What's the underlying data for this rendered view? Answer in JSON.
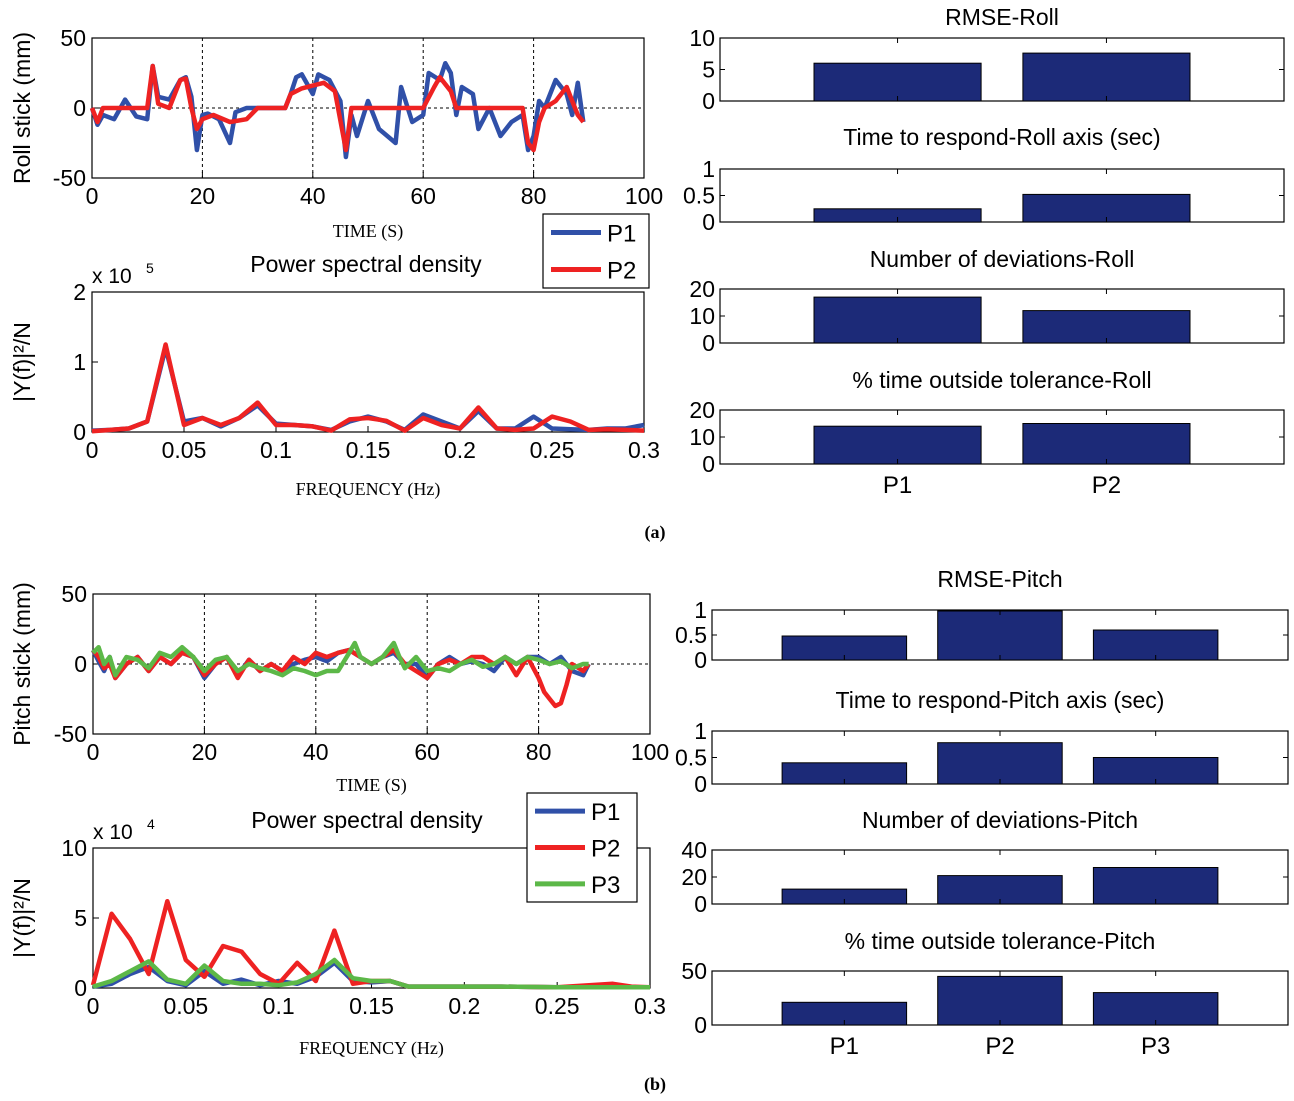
{
  "figure": {
    "caption_a": "(a)",
    "caption_b": "(b)",
    "colors": {
      "P1": "#3050a8",
      "P2": "#ee2222",
      "P3": "#5cb848",
      "bar": "#1c2a78"
    }
  },
  "chart_data": [
    {
      "id": "a-roll-time",
      "type": "line",
      "xlabel": "TIME (S)",
      "ylabel": "Roll stick (mm)",
      "xlim": [
        0,
        100
      ],
      "ylim": [
        -50,
        50
      ],
      "xticks": [
        0,
        20,
        40,
        60,
        80,
        100
      ],
      "yticks": [
        -50,
        0,
        50
      ],
      "grid": true,
      "legend_placement": "bottom-right-outside",
      "series": [
        {
          "name": "P1",
          "color": "#3050a8",
          "x": [
            0,
            1,
            2,
            4,
            6,
            8,
            10,
            11,
            12,
            14,
            16,
            17,
            18,
            19,
            20,
            21,
            23,
            25,
            26,
            28,
            30,
            32,
            35,
            36,
            37,
            38,
            40,
            41,
            43,
            45,
            46,
            47,
            48,
            50,
            52,
            55,
            56,
            58,
            60,
            61,
            63,
            64,
            65,
            66,
            67,
            69,
            70,
            72,
            74,
            76,
            78,
            79,
            80,
            81,
            82,
            84,
            86,
            87,
            88,
            89
          ],
          "y": [
            0,
            -12,
            -5,
            -8,
            6,
            -6,
            -8,
            30,
            8,
            6,
            20,
            22,
            8,
            -30,
            -5,
            -4,
            -8,
            -25,
            -3,
            0,
            0,
            0,
            0,
            10,
            22,
            24,
            10,
            24,
            20,
            5,
            -35,
            -5,
            -20,
            5,
            -15,
            -25,
            15,
            -10,
            -5,
            25,
            20,
            32,
            25,
            -5,
            15,
            10,
            -15,
            0,
            -20,
            -10,
            -5,
            -30,
            -20,
            5,
            0,
            20,
            10,
            -5,
            18,
            -10
          ]
        },
        {
          "name": "P2",
          "color": "#ee2222",
          "x": [
            0,
            1,
            2,
            4,
            6,
            8,
            10,
            11,
            12,
            14,
            16,
            17,
            18,
            19,
            20,
            22,
            25,
            28,
            30,
            32,
            35,
            36,
            38,
            40,
            42,
            44,
            46,
            47,
            48,
            50,
            55,
            60,
            62,
            63,
            65,
            66,
            68,
            70,
            75,
            78,
            79,
            80,
            81,
            82,
            84,
            86,
            87,
            88,
            89
          ],
          "y": [
            0,
            -10,
            0,
            0,
            0,
            0,
            0,
            30,
            3,
            0,
            20,
            21,
            0,
            -15,
            -8,
            -5,
            -10,
            -8,
            0,
            0,
            0,
            10,
            14,
            16,
            18,
            12,
            -30,
            0,
            0,
            0,
            0,
            0,
            15,
            22,
            12,
            0,
            0,
            0,
            0,
            0,
            -25,
            -30,
            -10,
            0,
            5,
            15,
            5,
            -5,
            -10
          ]
        }
      ]
    },
    {
      "id": "a-roll-psd",
      "type": "line",
      "title": "Power spectral density",
      "xlabel": "FREQUENCY (Hz)",
      "ylabel": "|Y(f)|²/N",
      "y_multiplier": "x 10",
      "y_multiplier_exp": "5",
      "xlim": [
        0,
        0.3
      ],
      "ylim": [
        0,
        2
      ],
      "xticks": [
        "0",
        "0.05",
        "0.1",
        "0.15",
        "0.2",
        "0.25",
        "0.3"
      ],
      "yticks": [
        "0",
        "1",
        "2"
      ],
      "grid": false,
      "series": [
        {
          "name": "P1",
          "color": "#3050a8",
          "x": [
            0,
            0.01,
            0.02,
            0.03,
            0.04,
            0.05,
            0.06,
            0.07,
            0.08,
            0.09,
            0.1,
            0.11,
            0.12,
            0.13,
            0.14,
            0.15,
            0.16,
            0.17,
            0.18,
            0.19,
            0.2,
            0.21,
            0.22,
            0.23,
            0.24,
            0.25,
            0.26,
            0.27,
            0.28,
            0.29,
            0.3
          ],
          "y": [
            0.02,
            0.03,
            0.05,
            0.15,
            1.2,
            0.15,
            0.2,
            0.08,
            0.2,
            0.38,
            0.12,
            0.1,
            0.08,
            0.03,
            0.15,
            0.22,
            0.15,
            0.03,
            0.25,
            0.15,
            0.05,
            0.3,
            0.05,
            0.05,
            0.22,
            0.05,
            0.04,
            0.03,
            0.05,
            0.05,
            0.1
          ]
        },
        {
          "name": "P2",
          "color": "#ee2222",
          "x": [
            0,
            0.01,
            0.02,
            0.03,
            0.04,
            0.05,
            0.06,
            0.07,
            0.08,
            0.09,
            0.1,
            0.11,
            0.12,
            0.13,
            0.14,
            0.15,
            0.16,
            0.17,
            0.18,
            0.19,
            0.2,
            0.21,
            0.22,
            0.23,
            0.24,
            0.25,
            0.26,
            0.27,
            0.28,
            0.29,
            0.3
          ],
          "y": [
            0.01,
            0.03,
            0.05,
            0.15,
            1.25,
            0.1,
            0.2,
            0.1,
            0.2,
            0.42,
            0.1,
            0.1,
            0.08,
            0.02,
            0.18,
            0.2,
            0.16,
            0.02,
            0.2,
            0.1,
            0.05,
            0.35,
            0.05,
            0.03,
            0.05,
            0.22,
            0.15,
            0.03,
            0.04,
            0.03,
            0.02
          ]
        }
      ]
    },
    {
      "id": "a-rmse-roll",
      "type": "bar",
      "title": "RMSE-Roll",
      "categories": [
        "P1",
        "P2"
      ],
      "values": [
        6,
        7.6
      ],
      "ylim": [
        0,
        10
      ],
      "yticks": [
        "0",
        "5",
        "10"
      ],
      "show_xticklabels": false
    },
    {
      "id": "a-respond-roll",
      "type": "bar",
      "title": "Time to respond-Roll axis (sec)",
      "categories": [
        "P1",
        "P2"
      ],
      "values": [
        0.25,
        0.52
      ],
      "ylim": [
        0,
        1
      ],
      "yticks": [
        "0",
        "0.5",
        "1"
      ],
      "show_xticklabels": false
    },
    {
      "id": "a-deviations-roll",
      "type": "bar",
      "title": "Number of deviations-Roll",
      "categories": [
        "P1",
        "P2"
      ],
      "values": [
        17,
        12
      ],
      "ylim": [
        0,
        20
      ],
      "yticks": [
        "0",
        "10",
        "20"
      ],
      "show_xticklabels": false
    },
    {
      "id": "a-tolerance-roll",
      "type": "bar",
      "title": "% time outside tolerance-Roll",
      "categories": [
        "P1",
        "P2"
      ],
      "values": [
        14,
        15
      ],
      "ylim": [
        0,
        20
      ],
      "yticks": [
        "0",
        "10",
        "20"
      ],
      "show_xticklabels": true
    },
    {
      "id": "b-pitch-time",
      "type": "line",
      "xlabel": "TIME (S)",
      "ylabel": "Pitch stick (mm)",
      "xlim": [
        0,
        100
      ],
      "ylim": [
        -50,
        50
      ],
      "xticks": [
        0,
        20,
        40,
        60,
        80,
        100
      ],
      "yticks": [
        -50,
        0,
        50
      ],
      "grid": true,
      "series": [
        {
          "name": "P1",
          "color": "#3050a8",
          "x": [
            0,
            1,
            2,
            3,
            4,
            6,
            8,
            10,
            12,
            14,
            16,
            18,
            20,
            22,
            24,
            26,
            28,
            30,
            32,
            34,
            36,
            38,
            40,
            42,
            44,
            46,
            48,
            50,
            52,
            54,
            56,
            58,
            60,
            62,
            64,
            66,
            68,
            70,
            72,
            74,
            76,
            78,
            80,
            82,
            84,
            86,
            88,
            89
          ],
          "y": [
            10,
            2,
            -5,
            5,
            -10,
            0,
            5,
            -5,
            5,
            0,
            8,
            5,
            -10,
            0,
            5,
            -8,
            3,
            -5,
            0,
            -5,
            0,
            3,
            5,
            2,
            8,
            10,
            5,
            0,
            5,
            8,
            0,
            0,
            -10,
            0,
            5,
            0,
            2,
            0,
            -5,
            5,
            0,
            5,
            5,
            0,
            5,
            -5,
            -8,
            0
          ]
        },
        {
          "name": "P2",
          "color": "#ee2222",
          "x": [
            0,
            1,
            2,
            3,
            4,
            6,
            8,
            10,
            12,
            14,
            16,
            18,
            20,
            22,
            24,
            26,
            28,
            30,
            32,
            34,
            36,
            38,
            40,
            42,
            44,
            46,
            48,
            50,
            52,
            54,
            56,
            58,
            60,
            62,
            64,
            66,
            68,
            70,
            72,
            74,
            76,
            78,
            80,
            81,
            82,
            83,
            84,
            85,
            86,
            88,
            89
          ],
          "y": [
            10,
            5,
            -3,
            0,
            -10,
            0,
            5,
            -5,
            5,
            0,
            8,
            5,
            -8,
            0,
            5,
            -10,
            3,
            -5,
            0,
            -5,
            5,
            0,
            8,
            5,
            8,
            10,
            5,
            0,
            5,
            10,
            0,
            -5,
            -10,
            0,
            3,
            0,
            5,
            5,
            0,
            5,
            -8,
            5,
            -10,
            -20,
            -25,
            -30,
            -28,
            -15,
            0,
            -5,
            0
          ]
        },
        {
          "name": "P3",
          "color": "#5cb848",
          "x": [
            0,
            1,
            2,
            3,
            4,
            6,
            8,
            10,
            12,
            14,
            16,
            18,
            20,
            22,
            24,
            26,
            28,
            30,
            32,
            34,
            36,
            38,
            40,
            42,
            44,
            46,
            47,
            48,
            50,
            52,
            54,
            55,
            56,
            58,
            60,
            62,
            64,
            66,
            68,
            70,
            72,
            74,
            76,
            78,
            80,
            82,
            84,
            86,
            88,
            89
          ],
          "y": [
            8,
            12,
            0,
            5,
            -8,
            5,
            3,
            -3,
            8,
            5,
            12,
            5,
            -5,
            3,
            5,
            -5,
            0,
            -3,
            -5,
            -8,
            -3,
            -5,
            -8,
            -5,
            -5,
            8,
            15,
            5,
            0,
            5,
            15,
            5,
            -3,
            5,
            -5,
            -3,
            -5,
            0,
            3,
            -2,
            0,
            5,
            0,
            5,
            3,
            0,
            2,
            -3,
            0,
            0
          ]
        }
      ]
    },
    {
      "id": "b-pitch-psd",
      "type": "line",
      "title": "Power spectral density",
      "xlabel": "FREQUENCY (Hz)",
      "ylabel": "|Y(f)|²/N",
      "y_multiplier": "x 10",
      "y_multiplier_exp": "4",
      "xlim": [
        0,
        0.3
      ],
      "ylim": [
        0,
        10
      ],
      "xticks": [
        "0",
        "0.05",
        "0.1",
        "0.15",
        "0.2",
        "0.25",
        "0.3"
      ],
      "yticks": [
        "0",
        "5",
        "10"
      ],
      "grid": false,
      "series": [
        {
          "name": "P1",
          "color": "#3050a8",
          "x": [
            0,
            0.01,
            0.02,
            0.03,
            0.04,
            0.05,
            0.06,
            0.07,
            0.08,
            0.09,
            0.1,
            0.11,
            0.12,
            0.13,
            0.14,
            0.15,
            0.16,
            0.17,
            0.18,
            0.2,
            0.22,
            0.25,
            0.28,
            0.3
          ],
          "y": [
            0.1,
            0.3,
            1.0,
            1.5,
            0.5,
            0.2,
            1.2,
            0.3,
            0.6,
            0.2,
            0.5,
            0.3,
            0.8,
            1.8,
            0.5,
            0.4,
            0.5,
            0.1,
            0.1,
            0.1,
            0.1,
            0.05,
            0.05,
            0.05
          ]
        },
        {
          "name": "P2",
          "color": "#ee2222",
          "x": [
            0,
            0.01,
            0.02,
            0.03,
            0.04,
            0.05,
            0.06,
            0.07,
            0.08,
            0.09,
            0.1,
            0.11,
            0.12,
            0.13,
            0.14,
            0.15,
            0.16,
            0.17,
            0.18,
            0.2,
            0.22,
            0.25,
            0.28,
            0.29,
            0.3
          ],
          "y": [
            0.2,
            5.3,
            3.5,
            1.0,
            6.2,
            2.0,
            0.8,
            3.0,
            2.6,
            1.0,
            0.3,
            1.8,
            0.5,
            4.1,
            0.3,
            0.5,
            0.5,
            0.1,
            0.1,
            0.1,
            0.1,
            0.05,
            0.3,
            0.1,
            0.05
          ]
        },
        {
          "name": "P3",
          "color": "#5cb848",
          "x": [
            0,
            0.01,
            0.02,
            0.03,
            0.04,
            0.05,
            0.06,
            0.07,
            0.08,
            0.09,
            0.1,
            0.11,
            0.12,
            0.13,
            0.14,
            0.15,
            0.16,
            0.17,
            0.18,
            0.2,
            0.22,
            0.25,
            0.28,
            0.3
          ],
          "y": [
            0.1,
            0.5,
            1.2,
            1.9,
            0.6,
            0.3,
            1.6,
            0.5,
            0.3,
            0.3,
            0.2,
            0.4,
            1.0,
            2.0,
            0.7,
            0.5,
            0.5,
            0.1,
            0.1,
            0.1,
            0.1,
            0.05,
            0.05,
            0.05
          ]
        }
      ]
    },
    {
      "id": "b-rmse-pitch",
      "type": "bar",
      "title": "RMSE-Pitch",
      "categories": [
        "P1",
        "P2",
        "P3"
      ],
      "values": [
        0.48,
        0.98,
        0.6
      ],
      "ylim": [
        0,
        1
      ],
      "yticks": [
        "0",
        "0.5",
        "1"
      ],
      "show_xticklabels": false
    },
    {
      "id": "b-respond-pitch",
      "type": "bar",
      "title": "Time to respond-Pitch axis (sec)",
      "categories": [
        "P1",
        "P2",
        "P3"
      ],
      "values": [
        0.4,
        0.78,
        0.5
      ],
      "ylim": [
        0,
        1
      ],
      "yticks": [
        "0",
        "0.5",
        "1"
      ],
      "show_xticklabels": false
    },
    {
      "id": "b-deviations-pitch",
      "type": "bar",
      "title": "Number of deviations-Pitch",
      "categories": [
        "P1",
        "P2",
        "P3"
      ],
      "values": [
        11,
        21,
        27
      ],
      "ylim": [
        0,
        40
      ],
      "yticks": [
        "0",
        "20",
        "40"
      ],
      "show_xticklabels": false
    },
    {
      "id": "b-tolerance-pitch",
      "type": "bar",
      "title": "% time outside tolerance-Pitch",
      "categories": [
        "P1",
        "P2",
        "P3"
      ],
      "values": [
        21,
        45,
        30
      ],
      "ylim": [
        0,
        50
      ],
      "yticks": [
        "0",
        "50"
      ],
      "show_xticklabels": true
    }
  ]
}
